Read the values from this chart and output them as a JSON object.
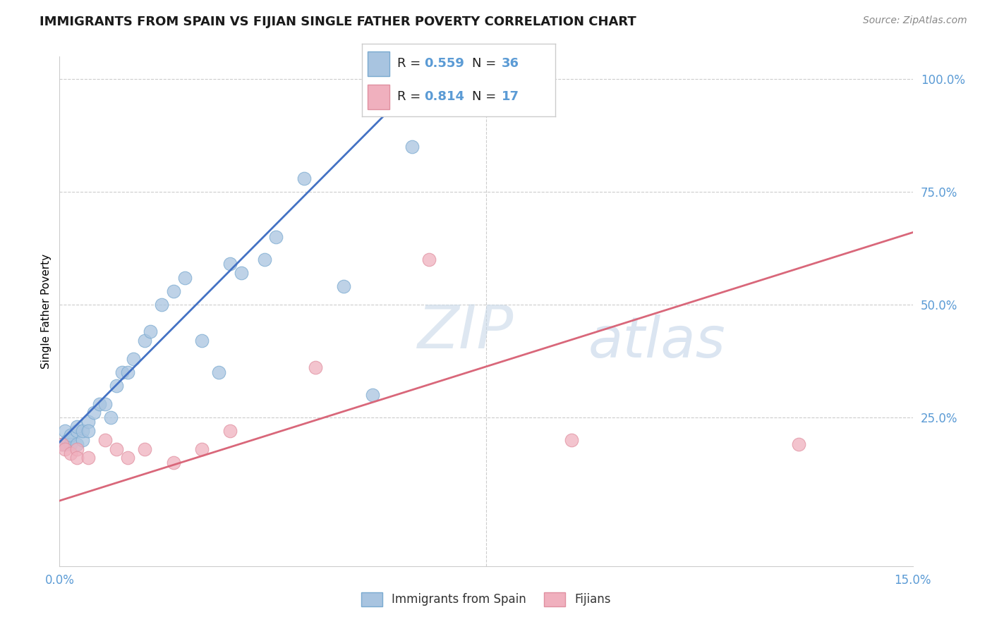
{
  "title": "IMMIGRANTS FROM SPAIN VS FIJIAN SINGLE FATHER POVERTY CORRELATION CHART",
  "source_text": "Source: ZipAtlas.com",
  "ylabel": "Single Father Poverty",
  "x_range": [
    0.0,
    0.15
  ],
  "y_range": [
    -0.08,
    1.05
  ],
  "blue_R": "0.559",
  "blue_N": "36",
  "pink_R": "0.814",
  "pink_N": "17",
  "blue_color": "#a8c4e0",
  "pink_color": "#f0b0be",
  "blue_line_color": "#4472c4",
  "pink_line_color": "#d9677a",
  "blue_line_x": [
    0.0,
    0.065
  ],
  "blue_line_y": [
    0.195,
    1.02
  ],
  "pink_line_x": [
    0.0,
    0.15
  ],
  "pink_line_y": [
    0.065,
    0.66
  ],
  "blue_scatter_x": [
    0.0005,
    0.001,
    0.001,
    0.0015,
    0.002,
    0.002,
    0.003,
    0.003,
    0.003,
    0.004,
    0.004,
    0.005,
    0.005,
    0.006,
    0.007,
    0.008,
    0.009,
    0.01,
    0.011,
    0.012,
    0.013,
    0.015,
    0.016,
    0.018,
    0.02,
    0.022,
    0.025,
    0.028,
    0.03,
    0.032,
    0.036,
    0.038,
    0.043,
    0.05,
    0.055,
    0.062
  ],
  "blue_scatter_y": [
    0.19,
    0.19,
    0.22,
    0.2,
    0.19,
    0.21,
    0.22,
    0.23,
    0.19,
    0.2,
    0.22,
    0.24,
    0.22,
    0.26,
    0.28,
    0.28,
    0.25,
    0.32,
    0.35,
    0.35,
    0.38,
    0.42,
    0.44,
    0.5,
    0.53,
    0.56,
    0.42,
    0.35,
    0.59,
    0.57,
    0.6,
    0.65,
    0.78,
    0.54,
    0.3,
    0.85
  ],
  "pink_scatter_x": [
    0.0005,
    0.001,
    0.002,
    0.003,
    0.003,
    0.005,
    0.008,
    0.01,
    0.012,
    0.015,
    0.02,
    0.025,
    0.03,
    0.045,
    0.065,
    0.09,
    0.13
  ],
  "pink_scatter_y": [
    0.19,
    0.18,
    0.17,
    0.18,
    0.16,
    0.16,
    0.2,
    0.18,
    0.16,
    0.18,
    0.15,
    0.18,
    0.22,
    0.36,
    0.6,
    0.2,
    0.19
  ],
  "watermark_zip": "ZIP",
  "watermark_atlas": "atlas",
  "title_fontsize": 13,
  "source_fontsize": 10,
  "tick_fontsize": 12,
  "ylabel_fontsize": 11,
  "legend_fontsize": 13,
  "scatter_size": 180,
  "scatter_alpha": 0.75
}
